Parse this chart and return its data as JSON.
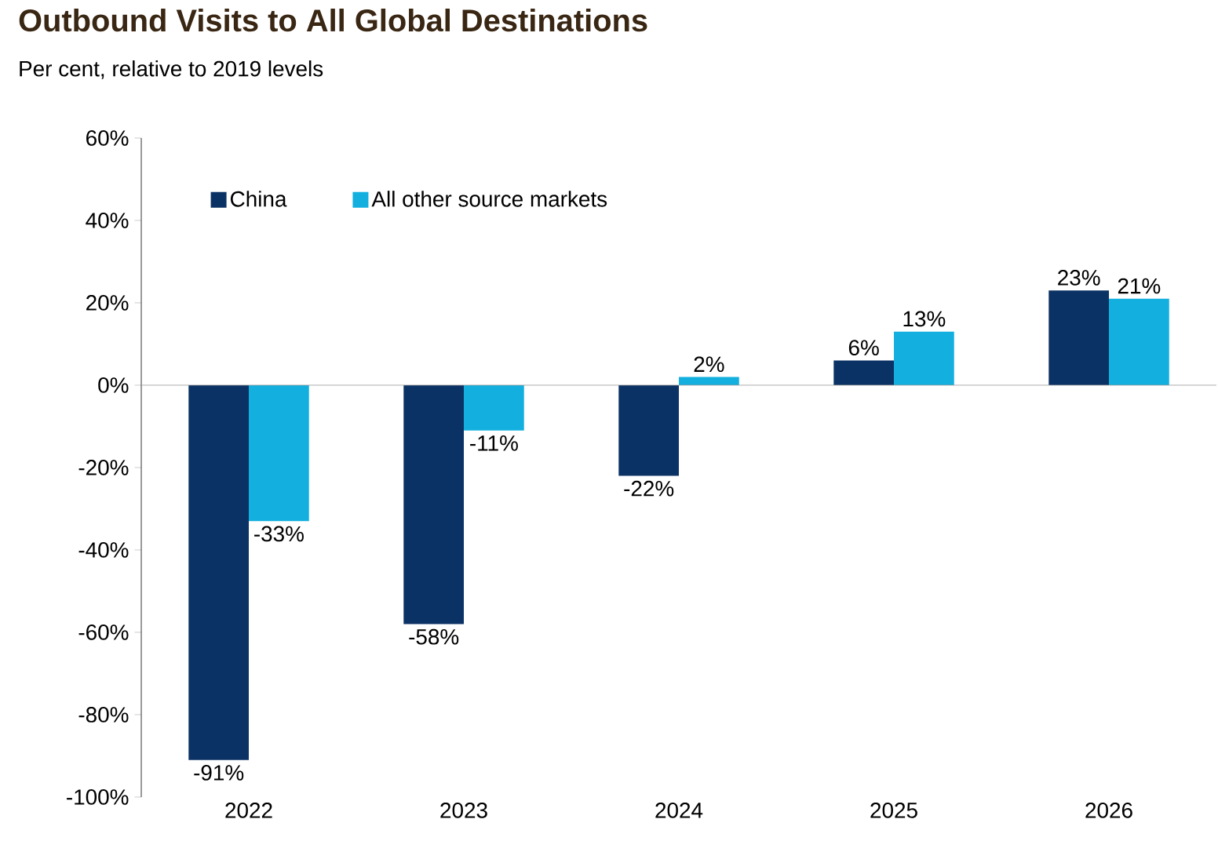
{
  "chart_data": {
    "type": "bar",
    "title": "Outbound Visits to All Global Destinations",
    "subtitle": "Per cent, relative to 2019 levels",
    "categories": [
      "2022",
      "2023",
      "2024",
      "2025",
      "2026"
    ],
    "series": [
      {
        "name": "China",
        "color": "#0b3265",
        "values": [
          -91,
          -58,
          -22,
          6,
          23
        ],
        "value_labels": [
          "-91%",
          "-58%",
          "-22%",
          "6%",
          "23%"
        ]
      },
      {
        "name": "All other source markets",
        "color": "#12afdf",
        "values": [
          -33,
          -11,
          2,
          13,
          21
        ],
        "value_labels": [
          "-33%",
          "-11%",
          "2%",
          "13%",
          "21%"
        ]
      }
    ],
    "ylim": [
      -100,
      60
    ],
    "yticks": [
      {
        "value": -100,
        "label": "-100%"
      },
      {
        "value": -80,
        "label": "-80%"
      },
      {
        "value": -60,
        "label": "-60%"
      },
      {
        "value": -40,
        "label": "-40%"
      },
      {
        "value": -20,
        "label": "-20%"
      },
      {
        "value": 0,
        "label": "0%"
      },
      {
        "value": 20,
        "label": "20%"
      },
      {
        "value": 40,
        "label": "40%"
      },
      {
        "value": 60,
        "label": "60%"
      }
    ],
    "legend": "top left"
  }
}
